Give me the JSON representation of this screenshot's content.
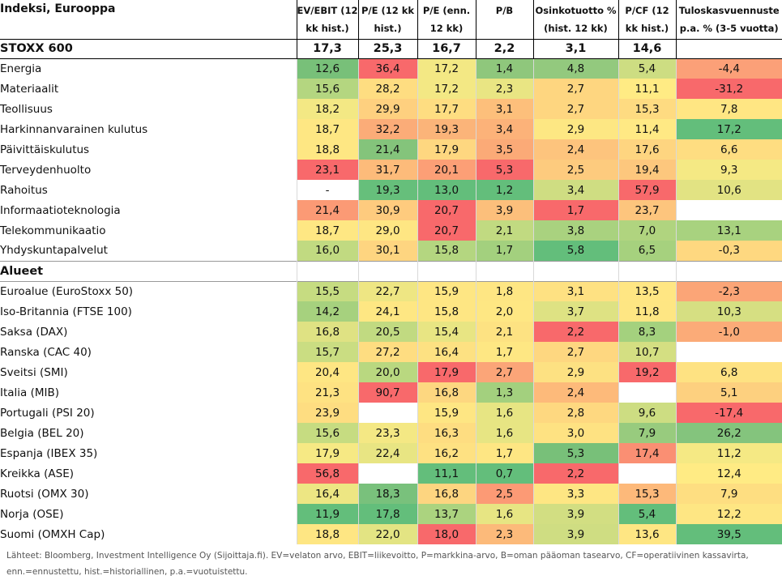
{
  "title": "Indeksi, Eurooppa",
  "columns": [
    {
      "line1": "EV/EBIT (12",
      "line2": "kk hist.)"
    },
    {
      "line1": "P/E (12 kk",
      "line2": "hist.)"
    },
    {
      "line1": "P/E (enn.",
      "line2": "12 kk)"
    },
    {
      "line1": "P/B",
      "line2": ""
    },
    {
      "line1": "Osinkotuotto %",
      "line2": "(hist. 12 kk)"
    },
    {
      "line1": "P/CF (12",
      "line2": "kk hist.)"
    },
    {
      "line1": "Tuloskasvuennuste",
      "line2": "p.a. % (3-5 vuotta)"
    }
  ],
  "stoxx": {
    "label": "STOXX 600",
    "values": [
      "17,3",
      "25,3",
      "16,7",
      "2,2",
      "3,1",
      "14,6",
      ""
    ]
  },
  "sectors": [
    {
      "label": "Energia",
      "values": [
        "12,6",
        "36,4",
        "17,2",
        "1,4",
        "4,8",
        "5,4",
        "-4,4"
      ],
      "colors": [
        "#78c079",
        "#f8696b",
        "#f3e884",
        "#8fc77c",
        "#93c97e",
        "#cddd82",
        "#fba078"
      ]
    },
    {
      "label": "Materiaalit",
      "values": [
        "15,6",
        "28,2",
        "17,2",
        "2,3",
        "2,7",
        "11,1",
        "-31,2"
      ],
      "colors": [
        "#b4d680",
        "#fedd81",
        "#f3e884",
        "#e9e583",
        "#fed680",
        "#ffeb84",
        "#f8696b"
      ]
    },
    {
      "label": "Teollisuus",
      "values": [
        "18,2",
        "29,9",
        "17,7",
        "3,1",
        "2,7",
        "15,3",
        "7,8"
      ],
      "colors": [
        "#f3e884",
        "#fed07f",
        "#fedd81",
        "#fdbf7b",
        "#fed680",
        "#fedb81",
        "#ffe683"
      ]
    },
    {
      "label": "Harkinnanvarainen kulutus",
      "values": [
        "18,7",
        "32,2",
        "19,3",
        "3,4",
        "2,9",
        "11,4",
        "17,2"
      ],
      "colors": [
        "#fee783",
        "#fbac78",
        "#fbb479",
        "#fcb279",
        "#fde783",
        "#ffe984",
        "#63be7b"
      ]
    },
    {
      "label": "Päivittäiskulutus",
      "values": [
        "18,8",
        "21,4",
        "17,9",
        "3,5",
        "2,4",
        "17,6",
        "6,6"
      ],
      "colors": [
        "#fee783",
        "#84c47b",
        "#fed780",
        "#fbaa77",
        "#fdc47d",
        "#fed580",
        "#fedd81"
      ]
    },
    {
      "label": "Terveydenhuolto",
      "values": [
        "23,1",
        "31,7",
        "20,1",
        "5,3",
        "2,5",
        "19,4",
        "9,3"
      ],
      "colors": [
        "#f8696b",
        "#fdbb7a",
        "#fc9f76",
        "#f8696b",
        "#fdcb7e",
        "#fdc77d",
        "#f5e984"
      ]
    },
    {
      "label": "Rahoitus",
      "values": [
        "-",
        "19,3",
        "13,0",
        "1,2",
        "3,4",
        "57,9",
        "10,6"
      ],
      "colors": [
        "#ffffff",
        "#66bf7b",
        "#63be7b",
        "#63be7b",
        "#cfdd82",
        "#f8696b",
        "#e2e383"
      ]
    },
    {
      "label": "Informaatioteknologia",
      "values": [
        "21,4",
        "30,9",
        "20,7",
        "3,9",
        "1,7",
        "23,7",
        ""
      ],
      "colors": [
        "#fb9a75",
        "#fecb7e",
        "#f8696b",
        "#fcbf7b",
        "#f8696b",
        "#fdc57d",
        "#ffffff"
      ]
    },
    {
      "label": "Telekommunikaatio",
      "values": [
        "18,7",
        "29,0",
        "20,7",
        "2,1",
        "3,8",
        "7,0",
        "13,1"
      ],
      "colors": [
        "#fee783",
        "#fee683",
        "#f8696b",
        "#c1da81",
        "#a9d27f",
        "#b0d47f",
        "#a8d27f"
      ]
    },
    {
      "label": "Yhdyskuntapalvelut",
      "values": [
        "16,0",
        "30,1",
        "15,8",
        "1,7",
        "5,8",
        "6,5",
        "-0,3"
      ],
      "colors": [
        "#c1da81",
        "#fed580",
        "#b4d680",
        "#a3d07e",
        "#63be7b",
        "#a6d17e",
        "#fed880"
      ]
    }
  ],
  "region_title": "Alueet",
  "regions": [
    {
      "label": "Euroalue (EuroStoxx 50)",
      "values": [
        "15,5",
        "22,7",
        "15,9",
        "1,8",
        "3,1",
        "13,5",
        "-2,3"
      ],
      "colors": [
        "#c6dc81",
        "#eee683",
        "#fee683",
        "#fee683",
        "#fee182",
        "#ffe683",
        "#fba577"
      ]
    },
    {
      "label": "Iso-Britannia (FTSE 100)",
      "values": [
        "14,2",
        "24,1",
        "15,8",
        "2,0",
        "3,7",
        "11,8",
        "10,3"
      ],
      "colors": [
        "#a6d17e",
        "#fee783",
        "#fee683",
        "#fee783",
        "#dee283",
        "#fee683",
        "#d6df82"
      ]
    },
    {
      "label": "Saksa (DAX)",
      "values": [
        "16,8",
        "20,5",
        "15,4",
        "2,1",
        "2,2",
        "8,3",
        "-1,0"
      ],
      "colors": [
        "#dfe283",
        "#c1da81",
        "#e8e583",
        "#fde282",
        "#f8696b",
        "#a4d17e",
        "#fbab78"
      ]
    },
    {
      "label": "Ranska (CAC 40)",
      "values": [
        "15,7",
        "27,2",
        "16,4",
        "1,7",
        "2,7",
        "10,7",
        ""
      ],
      "colors": [
        "#cadd82",
        "#fedd81",
        "#fde182",
        "#fee783",
        "#fed780",
        "#d4df82",
        "#ffffff"
      ]
    },
    {
      "label": "Sveitsi (SMI)",
      "values": [
        "20,4",
        "20,0",
        "17,9",
        "2,7",
        "2,9",
        "19,2",
        "6,8"
      ],
      "colors": [
        "#fee683",
        "#b9d880",
        "#f8696b",
        "#fba578",
        "#fde182",
        "#f8696b",
        "#fee282"
      ]
    },
    {
      "label": "Italia (MIB)",
      "values": [
        "21,3",
        "90,7",
        "16,8",
        "1,3",
        "2,4",
        "",
        "5,1"
      ],
      "colors": [
        "#fee282",
        "#f8696b",
        "#fdd780",
        "#a3d07e",
        "#fdba7a",
        "#ffffff",
        "#fdd07f"
      ]
    },
    {
      "label": "Portugali (PSI 20)",
      "values": [
        "23,9",
        "",
        "15,9",
        "1,6",
        "2,8",
        "9,6",
        "-17,4"
      ],
      "colors": [
        "#fedd81",
        "#ffffff",
        "#fee683",
        "#e7e583",
        "#fed880",
        "#cddd82",
        "#f8696b"
      ]
    },
    {
      "label": "Belgia (BEL 20)",
      "values": [
        "15,6",
        "23,3",
        "16,3",
        "1,6",
        "3,0",
        "7,9",
        "26,2"
      ],
      "colors": [
        "#c6dc81",
        "#f4e884",
        "#fedd81",
        "#e7e583",
        "#fee282",
        "#98cb7e",
        "#84c47d"
      ]
    },
    {
      "label": "Espanja (IBEX 35)",
      "values": [
        "17,9",
        "22,4",
        "16,2",
        "1,7",
        "5,3",
        "17,4",
        "11,2"
      ],
      "colors": [
        "#f6e984",
        "#e8e583",
        "#fee182",
        "#fee683",
        "#78c079",
        "#fa8f73",
        "#f5e984"
      ]
    },
    {
      "label": "Kreikka (ASE)",
      "values": [
        "56,8",
        "",
        "11,1",
        "0,7",
        "2,2",
        "",
        "12,4"
      ],
      "colors": [
        "#f8696b",
        "#ffffff",
        "#63be7b",
        "#63be7b",
        "#f8696b",
        "#ffffff",
        "#ffeb84"
      ]
    },
    {
      "label": "Ruotsi (OMX 30)",
      "values": [
        "16,4",
        "18,3",
        "16,8",
        "2,5",
        "3,3",
        "15,3",
        "7,9"
      ],
      "colors": [
        "#ede683",
        "#79c17c",
        "#fdd580",
        "#fc9a75",
        "#fee683",
        "#fdb97a",
        "#fede81"
      ]
    },
    {
      "label": "Norja (OSE)",
      "values": [
        "11,9",
        "17,8",
        "13,7",
        "1,6",
        "3,9",
        "5,4",
        "12,2"
      ],
      "colors": [
        "#63be7b",
        "#63be7b",
        "#abd37f",
        "#e7e583",
        "#d2de82",
        "#63be7b",
        "#fee683"
      ]
    },
    {
      "label": "Suomi (OMXH Cap)",
      "values": [
        "18,8",
        "22,0",
        "18,0",
        "2,3",
        "3,9",
        "13,6",
        "39,5"
      ],
      "colors": [
        "#fee683",
        "#e3e483",
        "#f8696b",
        "#fcba7a",
        "#cfdd82",
        "#fee683",
        "#63be7b"
      ]
    }
  ],
  "footnote": "Lähteet: Bloomberg, Investment Intelligence Oy (Sijoittaja.fi). EV=velaton arvo, EBIT=liikevoitto, P=markkina-arvo, B=oman pääoman tasearvo, CF=operatiivinen kassavirta, enn.=ennustettu, hist.=historiallinen, p.a.=vuotuistettu."
}
